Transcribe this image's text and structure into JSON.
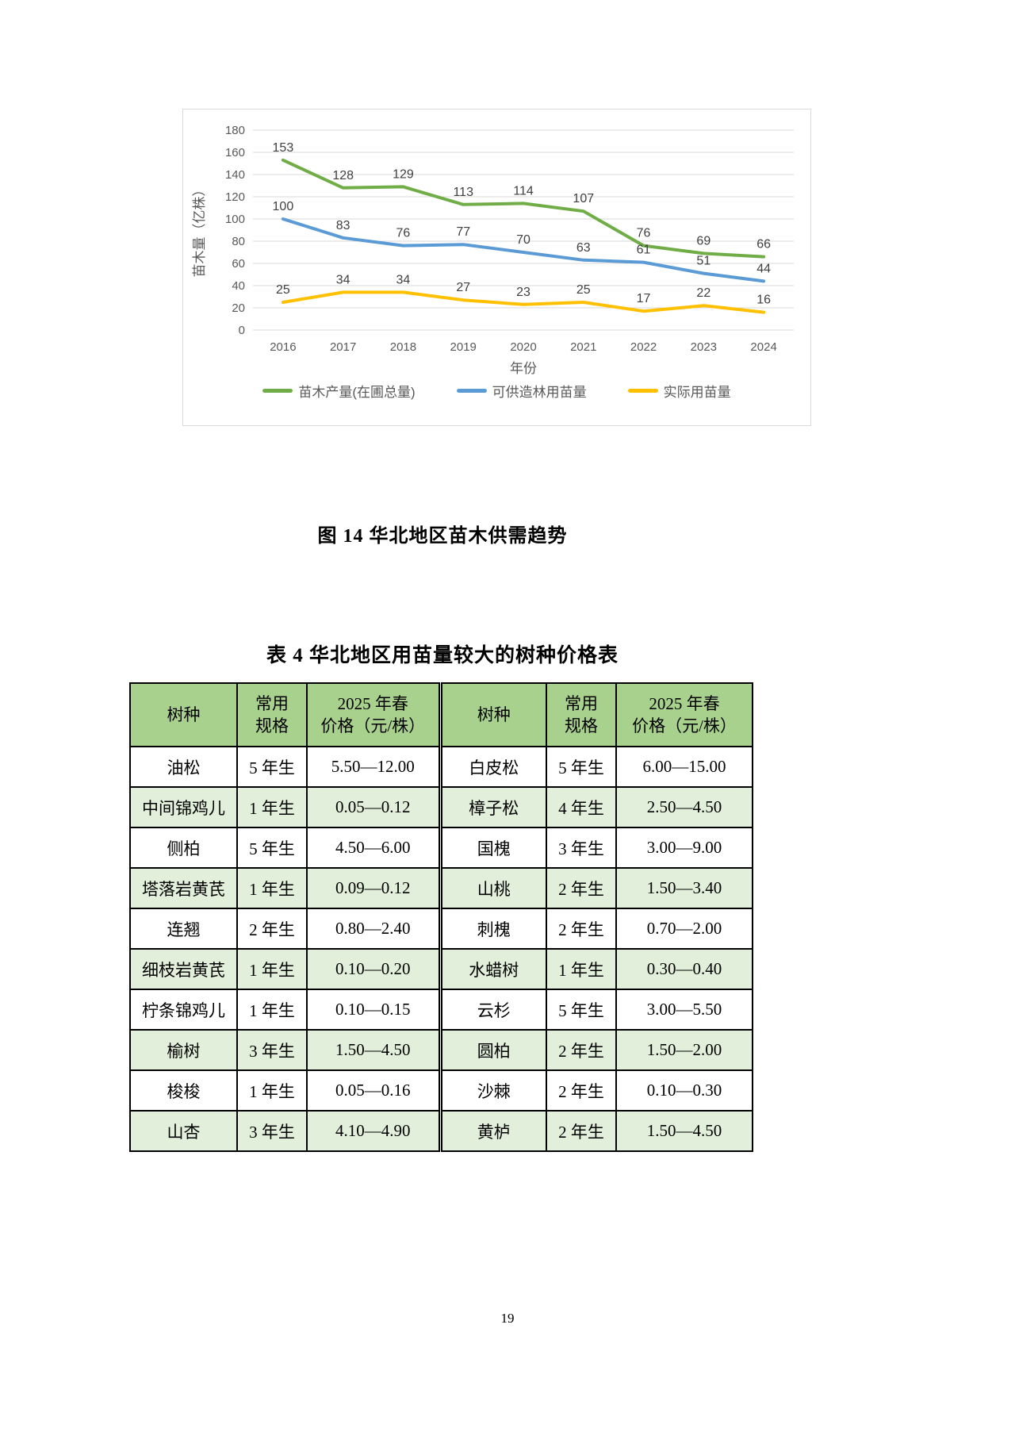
{
  "page_number": "19",
  "figure_caption": "图 14 华北地区苗木供需趋势",
  "colors": {
    "table_header_bg": "#A9D18E",
    "table_alt_row_bg": "#E2EFDA",
    "grid_line": "#D9D9D9",
    "axis_text": "#595959"
  },
  "chart_data": {
    "type": "line",
    "x": [
      "2016",
      "2017",
      "2018",
      "2019",
      "2020",
      "2021",
      "2022",
      "2023",
      "2024"
    ],
    "series": [
      {
        "name": "苗木产量(在圃总量)",
        "color": "#70AD47",
        "values": [
          153,
          128,
          129,
          113,
          114,
          107,
          76,
          69,
          66
        ]
      },
      {
        "name": "可供造林用苗量",
        "color": "#5B9BD5",
        "values": [
          100,
          83,
          76,
          77,
          70,
          63,
          61,
          51,
          44
        ]
      },
      {
        "name": "实际用苗量",
        "color": "#FFC000",
        "values": [
          25,
          34,
          34,
          27,
          23,
          25,
          17,
          22,
          16
        ]
      }
    ],
    "title": "",
    "xlabel": "年份",
    "ylabel": "苗木量（亿株）",
    "ylim": [
      0,
      180
    ],
    "ytick_step": 20,
    "grid": true,
    "legend_position": "bottom"
  },
  "table": {
    "title": "表 4 华北地区用苗量较大的树种价格表",
    "headers": [
      "树种",
      "常用\n规格",
      "2025 年春\n价格（元/株）",
      "树种",
      "常用\n规格",
      "2025 年春\n价格（元/株）"
    ],
    "rows": [
      {
        "left": {
          "species": "油松",
          "spec": "5 年生",
          "price": "5.50—12.00"
        },
        "right": {
          "species": "白皮松",
          "spec": "5 年生",
          "price": "6.00—15.00"
        }
      },
      {
        "left": {
          "species": "中间锦鸡儿",
          "spec": "1 年生",
          "price": "0.05—0.12"
        },
        "right": {
          "species": "樟子松",
          "spec": "4 年生",
          "price": "2.50—4.50"
        }
      },
      {
        "left": {
          "species": "侧柏",
          "spec": "5 年生",
          "price": "4.50—6.00"
        },
        "right": {
          "species": "国槐",
          "spec": "3 年生",
          "price": "3.00—9.00"
        }
      },
      {
        "left": {
          "species": "塔落岩黄芪",
          "spec": "1 年生",
          "price": "0.09—0.12"
        },
        "right": {
          "species": "山桃",
          "spec": "2 年生",
          "price": "1.50—3.40"
        }
      },
      {
        "left": {
          "species": "连翘",
          "spec": "2 年生",
          "price": "0.80—2.40"
        },
        "right": {
          "species": "刺槐",
          "spec": "2 年生",
          "price": "0.70—2.00"
        }
      },
      {
        "left": {
          "species": "细枝岩黄芪",
          "spec": "1 年生",
          "price": "0.10—0.20"
        },
        "right": {
          "species": "水蜡树",
          "spec": "1 年生",
          "price": "0.30—0.40"
        }
      },
      {
        "left": {
          "species": "柠条锦鸡儿",
          "spec": "1 年生",
          "price": "0.10—0.15"
        },
        "right": {
          "species": "云杉",
          "spec": "5 年生",
          "price": "3.00—5.50"
        }
      },
      {
        "left": {
          "species": "榆树",
          "spec": "3 年生",
          "price": "1.50—4.50"
        },
        "right": {
          "species": "圆柏",
          "spec": "2 年生",
          "price": "1.50—2.00"
        }
      },
      {
        "left": {
          "species": "梭梭",
          "spec": "1 年生",
          "price": "0.05—0.16"
        },
        "right": {
          "species": "沙棘",
          "spec": "2 年生",
          "price": "0.10—0.30"
        }
      },
      {
        "left": {
          "species": "山杏",
          "spec": "3 年生",
          "price": "4.10—4.90"
        },
        "right": {
          "species": "黄栌",
          "spec": "2 年生",
          "price": "1.50—4.50"
        }
      }
    ]
  }
}
